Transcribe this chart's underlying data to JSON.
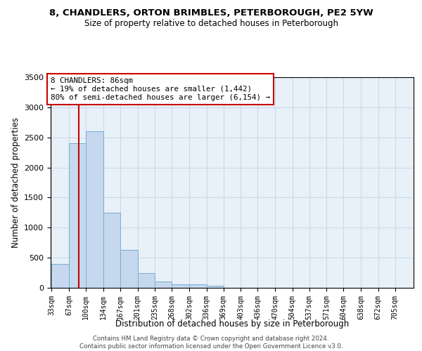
{
  "title": "8, CHANDLERS, ORTON BRIMBLES, PETERBOROUGH, PE2 5YW",
  "subtitle": "Size of property relative to detached houses in Peterborough",
  "xlabel": "Distribution of detached houses by size in Peterborough",
  "ylabel": "Number of detached properties",
  "bar_values": [
    400,
    2400,
    2600,
    1250,
    630,
    250,
    110,
    60,
    60,
    30,
    0,
    0,
    0,
    0,
    0,
    0,
    0,
    0,
    0,
    0
  ],
  "bin_edges": [
    33,
    67,
    100,
    134,
    167,
    201,
    235,
    268,
    302,
    336,
    369,
    403,
    436,
    470,
    504,
    537,
    571,
    604,
    638,
    672,
    705
  ],
  "bar_color": "#c5d8ee",
  "bar_edgecolor": "#7aadd4",
  "property_size": 86,
  "annotation_title": "8 CHANDLERS: 86sqm",
  "annotation_line1": "← 19% of detached houses are smaller (1,442)",
  "annotation_line2": "80% of semi-detached houses are larger (6,154) →",
  "annotation_box_color": "#ffffff",
  "annotation_box_edgecolor": "#cc0000",
  "vline_color": "#cc0000",
  "ylim": [
    0,
    3500
  ],
  "yticks": [
    0,
    500,
    1000,
    1500,
    2000,
    2500,
    3000,
    3500
  ],
  "background_color": "#ffffff",
  "plot_bg_color": "#e8f0f8",
  "grid_color": "#c8d8e8",
  "footer_line1": "Contains HM Land Registry data © Crown copyright and database right 2024.",
  "footer_line2": "Contains public sector information licensed under the Open Government Licence v3.0."
}
